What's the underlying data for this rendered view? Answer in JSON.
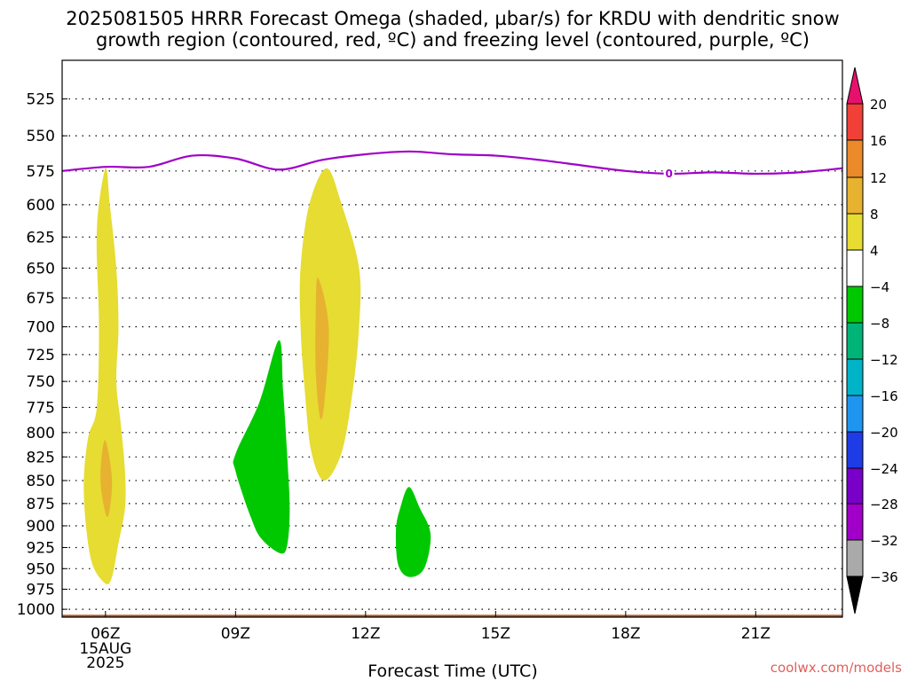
{
  "title": {
    "line1": "2025081505 HRRR Forecast Omega (shaded, µbar/s) for KRDU with dendritic snow",
    "line2": "growth region (contoured, red, ºC) and freezing level (contoured, purple, ºC)"
  },
  "credit": "coolwx.com/models",
  "chart_data": {
    "type": "time-height contour",
    "xlabel": "Forecast Time (UTC)",
    "ylabel": "",
    "x_ticks": [
      "06Z",
      "09Z",
      "12Z",
      "15Z",
      "18Z",
      "21Z"
    ],
    "x_tick_sublabels": [
      "15AUG",
      "2025"
    ],
    "x_hours": [
      6,
      9,
      12,
      15,
      18,
      21
    ],
    "xlim_hours": [
      5.0,
      23.0
    ],
    "y_ticks": [
      525,
      550,
      575,
      600,
      625,
      650,
      675,
      700,
      725,
      750,
      775,
      800,
      825,
      850,
      875,
      900,
      925,
      950,
      975,
      1000
    ],
    "ylim_hpa": [
      500,
      1010
    ],
    "y_scale": "log-pressure",
    "grid": "dotted horizontal at each pressure tick",
    "colorbar": {
      "labels": [
        "20",
        "16",
        "12",
        "8",
        "4",
        "−4",
        "−8",
        "−12",
        "−16",
        "−20",
        "−24",
        "−28",
        "−32",
        "−36"
      ],
      "levels": [
        20,
        16,
        12,
        8,
        4,
        -4,
        -8,
        -12,
        -16,
        -20,
        -24,
        -28,
        -32,
        -36
      ],
      "colors": [
        "#e8106e",
        "#f04038",
        "#ea8a2a",
        "#e6b230",
        "#e6dc32",
        "#ffffff",
        "#00c800",
        "#00b478",
        "#00b4c8",
        "#1e96f0",
        "#1e3ce6",
        "#7800c8",
        "#a000c8",
        "#aaaaaa",
        "#000000"
      ]
    },
    "freezing_level": {
      "label": "0",
      "label_hour": 19.0,
      "color": "#a000c8",
      "points": [
        [
          5.0,
          575
        ],
        [
          6.0,
          572
        ],
        [
          7.0,
          572
        ],
        [
          8.0,
          564
        ],
        [
          9.0,
          566
        ],
        [
          10.0,
          574
        ],
        [
          11.0,
          567
        ],
        [
          12.0,
          563
        ],
        [
          13.0,
          561
        ],
        [
          14.0,
          563
        ],
        [
          15.0,
          564
        ],
        [
          16.0,
          567
        ],
        [
          17.0,
          571
        ],
        [
          18.0,
          575
        ],
        [
          19.0,
          577
        ],
        [
          20.0,
          576
        ],
        [
          21.0,
          577
        ],
        [
          22.0,
          576
        ],
        [
          23.0,
          573
        ]
      ]
    },
    "omega_regions": [
      {
        "value_range": [
          4,
          8
        ],
        "color": "#e6dc32",
        "outline": [
          [
            6.0,
            573
          ],
          [
            6.1,
            600
          ],
          [
            6.25,
            650
          ],
          [
            6.3,
            700
          ],
          [
            6.25,
            750
          ],
          [
            6.35,
            790
          ],
          [
            6.45,
            840
          ],
          [
            6.45,
            880
          ],
          [
            6.3,
            920
          ],
          [
            6.15,
            960
          ],
          [
            6.0,
            968
          ],
          [
            5.7,
            945
          ],
          [
            5.55,
            900
          ],
          [
            5.5,
            850
          ],
          [
            5.6,
            805
          ],
          [
            5.8,
            775
          ],
          [
            5.85,
            700
          ],
          [
            5.8,
            620
          ]
        ]
      },
      {
        "value_range": [
          8,
          12
        ],
        "color": "#e6b230",
        "outline": [
          [
            6.0,
            808
          ],
          [
            6.15,
            850
          ],
          [
            6.05,
            890
          ],
          [
            5.9,
            860
          ],
          [
            5.9,
            830
          ]
        ]
      },
      {
        "value_range": [
          4,
          8
        ],
        "color": "#e6dc32",
        "outline": [
          [
            11.1,
            573
          ],
          [
            11.45,
            600
          ],
          [
            11.85,
            650
          ],
          [
            11.85,
            700
          ],
          [
            11.7,
            760
          ],
          [
            11.45,
            820
          ],
          [
            11.05,
            850
          ],
          [
            10.75,
            820
          ],
          [
            10.6,
            760
          ],
          [
            10.5,
            700
          ],
          [
            10.5,
            650
          ],
          [
            10.7,
            600
          ]
        ]
      },
      {
        "value_range": [
          8,
          12
        ],
        "color": "#e6b230",
        "outline": [
          [
            10.9,
            658
          ],
          [
            11.15,
            700
          ],
          [
            11.05,
            770
          ],
          [
            10.95,
            785
          ],
          [
            10.85,
            740
          ],
          [
            10.85,
            690
          ]
        ]
      },
      {
        "value_range": [
          -8,
          -4
        ],
        "color": "#00c800",
        "outline": [
          [
            10.0,
            712
          ],
          [
            10.1,
            760
          ],
          [
            10.2,
            830
          ],
          [
            10.25,
            880
          ],
          [
            10.2,
            920
          ],
          [
            10.05,
            932
          ],
          [
            9.6,
            915
          ],
          [
            9.35,
            890
          ],
          [
            9.0,
            840
          ],
          [
            9.0,
            822
          ],
          [
            9.55,
            770
          ]
        ]
      },
      {
        "value_range": [
          -8,
          -4
        ],
        "color": "#00c800",
        "outline": [
          [
            13.0,
            857
          ],
          [
            13.25,
            880
          ],
          [
            13.5,
            910
          ],
          [
            13.35,
            950
          ],
          [
            13.0,
            960
          ],
          [
            12.75,
            945
          ],
          [
            12.7,
            905
          ],
          [
            12.8,
            880
          ]
        ]
      }
    ],
    "terrain": {
      "color": "#a05a32",
      "top_hpa": 1007
    }
  }
}
